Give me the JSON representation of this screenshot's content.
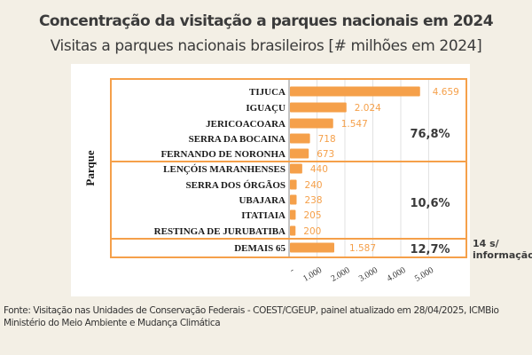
{
  "header": {
    "title": "Concentração da visitação a parques nacionais em 2024",
    "subtitle": "Visitas a parques nacionais brasileiros [# milhões em 2024]"
  },
  "chart_data": {
    "type": "bar",
    "orientation": "horizontal",
    "title": "Visitas a parques nacionais brasileiros [# milhões em 2024]",
    "xlabel": "",
    "ylabel": "Parque",
    "xlim": [
      0,
      5000
    ],
    "grid": true,
    "bar_color": "#f5a04a",
    "label_color": "#f5a04a",
    "categories": [
      "TIJUCA",
      "IGUAÇU",
      "JERICOACOARA",
      "SERRA DA BOCAINA",
      "FERNANDO DE NORONHA",
      "LENÇÓIS MARANHENSES",
      "SERRA DOS ÓRGÃOS",
      "UBAJARA",
      "ITATIAIA",
      "RESTINGA DE JURUBATIBA",
      "DEMAIS 65"
    ],
    "values": [
      4659,
      2024,
      1547,
      718,
      673,
      440,
      240,
      238,
      205,
      200,
      1587
    ],
    "value_labels": [
      "4.659",
      "2.024",
      "1.547",
      "718",
      "673",
      "440",
      "240",
      "238",
      "205",
      "200",
      "1.587"
    ],
    "x_ticks": [
      0,
      1000,
      2000,
      3000,
      4000,
      5000
    ],
    "x_tick_labels": [
      "-",
      "1.000",
      "2.000",
      "3.000",
      "4.000",
      "5.000"
    ],
    "groups": [
      {
        "name": "top5",
        "start": 0,
        "end": 4,
        "share_label": "76,8%"
      },
      {
        "name": "next5",
        "start": 5,
        "end": 9,
        "share_label": "10,6%"
      },
      {
        "name": "others",
        "start": 10,
        "end": 10,
        "share_label": "12,7%"
      }
    ],
    "annotation": "14 s/ informação"
  },
  "footer": {
    "source_line1": "Fonte: Visitação nas Unidades de Conservação Federais - COEST/CGEUP, painel atualizado em 28/04/2025, ICMBio",
    "source_line2": "Ministério do Meio Ambiente e Mudança Climática"
  }
}
